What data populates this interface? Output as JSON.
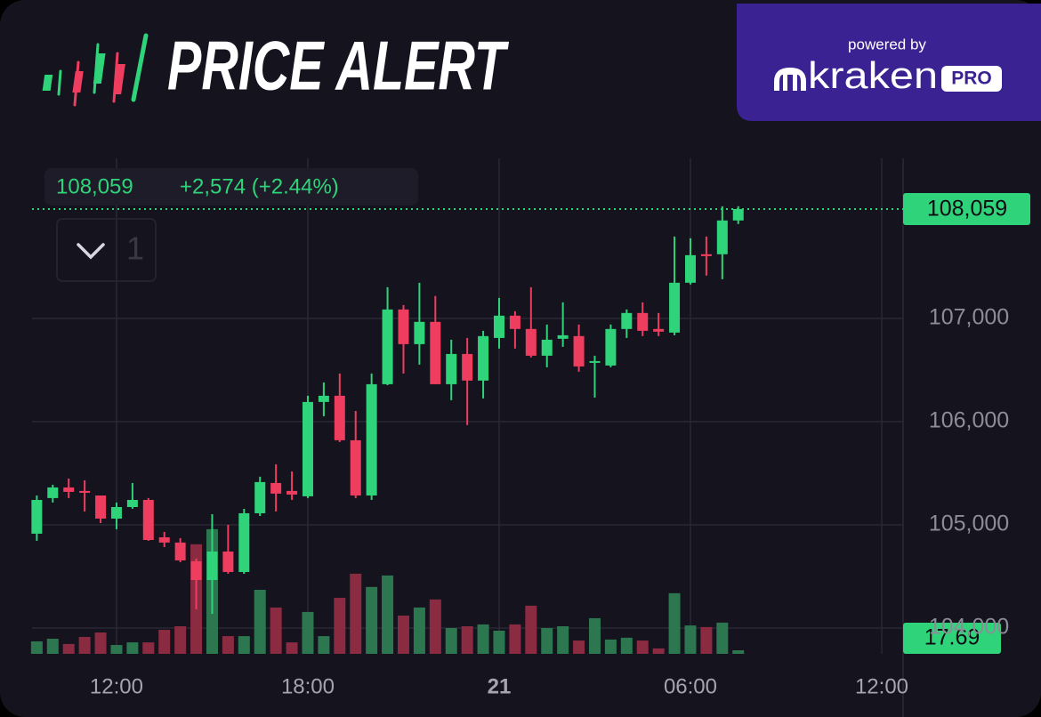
{
  "header": {
    "title": "PRICE ALERT",
    "powered_by": "powered by",
    "brand": "kraken",
    "brand_badge": "PRO"
  },
  "chart_data": {
    "type": "candlestick",
    "legend_price": "108,059",
    "legend_change": "+2,574 (+2.44%)",
    "indicator_count": 1,
    "price_tag": {
      "value": 108059,
      "label": "108,059"
    },
    "x": [
      9.5,
      10,
      10.5,
      11,
      11.5,
      12,
      12.5,
      13,
      13.5,
      14,
      14.5,
      15,
      15.5,
      16,
      16.5,
      17,
      17.5,
      18,
      18.5,
      19,
      19.5,
      20,
      20.5,
      21,
      21.5,
      22,
      22.5,
      23,
      23.5,
      24,
      24.5,
      25,
      25.5,
      26,
      26.5,
      27,
      27.5,
      28,
      28.5,
      29,
      29.5,
      30,
      30.5,
      31,
      31.5
    ],
    "open": [
      104914,
      105259,
      105362,
      105328,
      105284,
      105060,
      105172,
      105241,
      104879,
      104828,
      104647,
      104465,
      104741,
      104543,
      105112,
      105405,
      105328,
      105276,
      106190,
      106250,
      105819,
      105284,
      106362,
      107086,
      106750,
      106966,
      106362,
      106655,
      106397,
      106810,
      107026,
      106897,
      106638,
      106802,
      106828,
      106569,
      106543,
      106897,
      107052,
      106897,
      106862,
      107345,
      107621,
      107621,
      107948
    ],
    "high": [
      105284,
      105388,
      105448,
      105431,
      105284,
      105216,
      105405,
      105259,
      104931,
      104871,
      104672,
      105103,
      105000,
      105155,
      105466,
      105586,
      105517,
      106250,
      106379,
      106466,
      106103,
      106466,
      107302,
      107129,
      107345,
      107216,
      106793,
      106810,
      106879,
      107198,
      107069,
      107302,
      106940,
      107155,
      106940,
      106638,
      106940,
      107086,
      107155,
      107052,
      107793,
      107776,
      107793,
      108086,
      108086
    ],
    "low": [
      104845,
      105216,
      105259,
      105129,
      105017,
      104957,
      105155,
      104845,
      104784,
      104638,
      104181,
      104138,
      104526,
      104526,
      105086,
      105129,
      105241,
      105259,
      106052,
      105802,
      105259,
      105241,
      106353,
      106466,
      106552,
      106362,
      106207,
      105966,
      106224,
      106707,
      106707,
      106621,
      106526,
      106724,
      106483,
      106233,
      106526,
      106810,
      106828,
      106828,
      106836,
      107328,
      107414,
      107379,
      107914
    ],
    "close": [
      105241,
      105362,
      105319,
      105310,
      105060,
      105172,
      105241,
      104853,
      104828,
      104655,
      104465,
      104741,
      104543,
      105112,
      105414,
      105302,
      105293,
      106190,
      106250,
      105819,
      105284,
      106362,
      107086,
      106750,
      106966,
      106362,
      106655,
      106397,
      106828,
      107026,
      106897,
      106638,
      106793,
      106836,
      106534,
      106586,
      106897,
      107052,
      106879,
      106871,
      107345,
      107612,
      107603,
      107948,
      108059
    ],
    "volume": [
      62,
      75,
      49,
      84,
      106,
      44,
      57,
      57,
      119,
      137,
      544,
      619,
      88,
      88,
      318,
      230,
      57,
      208,
      88,
      278,
      398,
      332,
      389,
      190,
      230,
      270,
      128,
      137,
      146,
      115,
      146,
      239,
      128,
      137,
      66,
      177,
      71,
      80,
      66,
      27,
      301,
      141,
      133,
      155,
      17.69
    ],
    "up_color": "#2fd47a",
    "down_color": "#ee3d5e",
    "volume_up_color": "#2c7750",
    "volume_down_color": "#8a2b42",
    "xlim": [
      9.35,
      36.67
    ],
    "xticks": [
      {
        "value": 12,
        "label": "12:00"
      },
      {
        "value": 18,
        "label": "18:00"
      },
      {
        "value": 24,
        "label": "21"
      },
      {
        "value": 30,
        "label": "06:00"
      },
      {
        "value": 36,
        "label": "12:00"
      }
    ],
    "ylim": [
      103750,
      108550
    ],
    "yticks": [
      {
        "value": 104000,
        "label": "104,000"
      },
      {
        "value": 105000,
        "label": "105,000"
      },
      {
        "value": 106000,
        "label": "106,000"
      },
      {
        "value": 107000,
        "label": "107,000"
      }
    ],
    "y2lim": [
      0,
      2460
    ],
    "grid": true
  }
}
